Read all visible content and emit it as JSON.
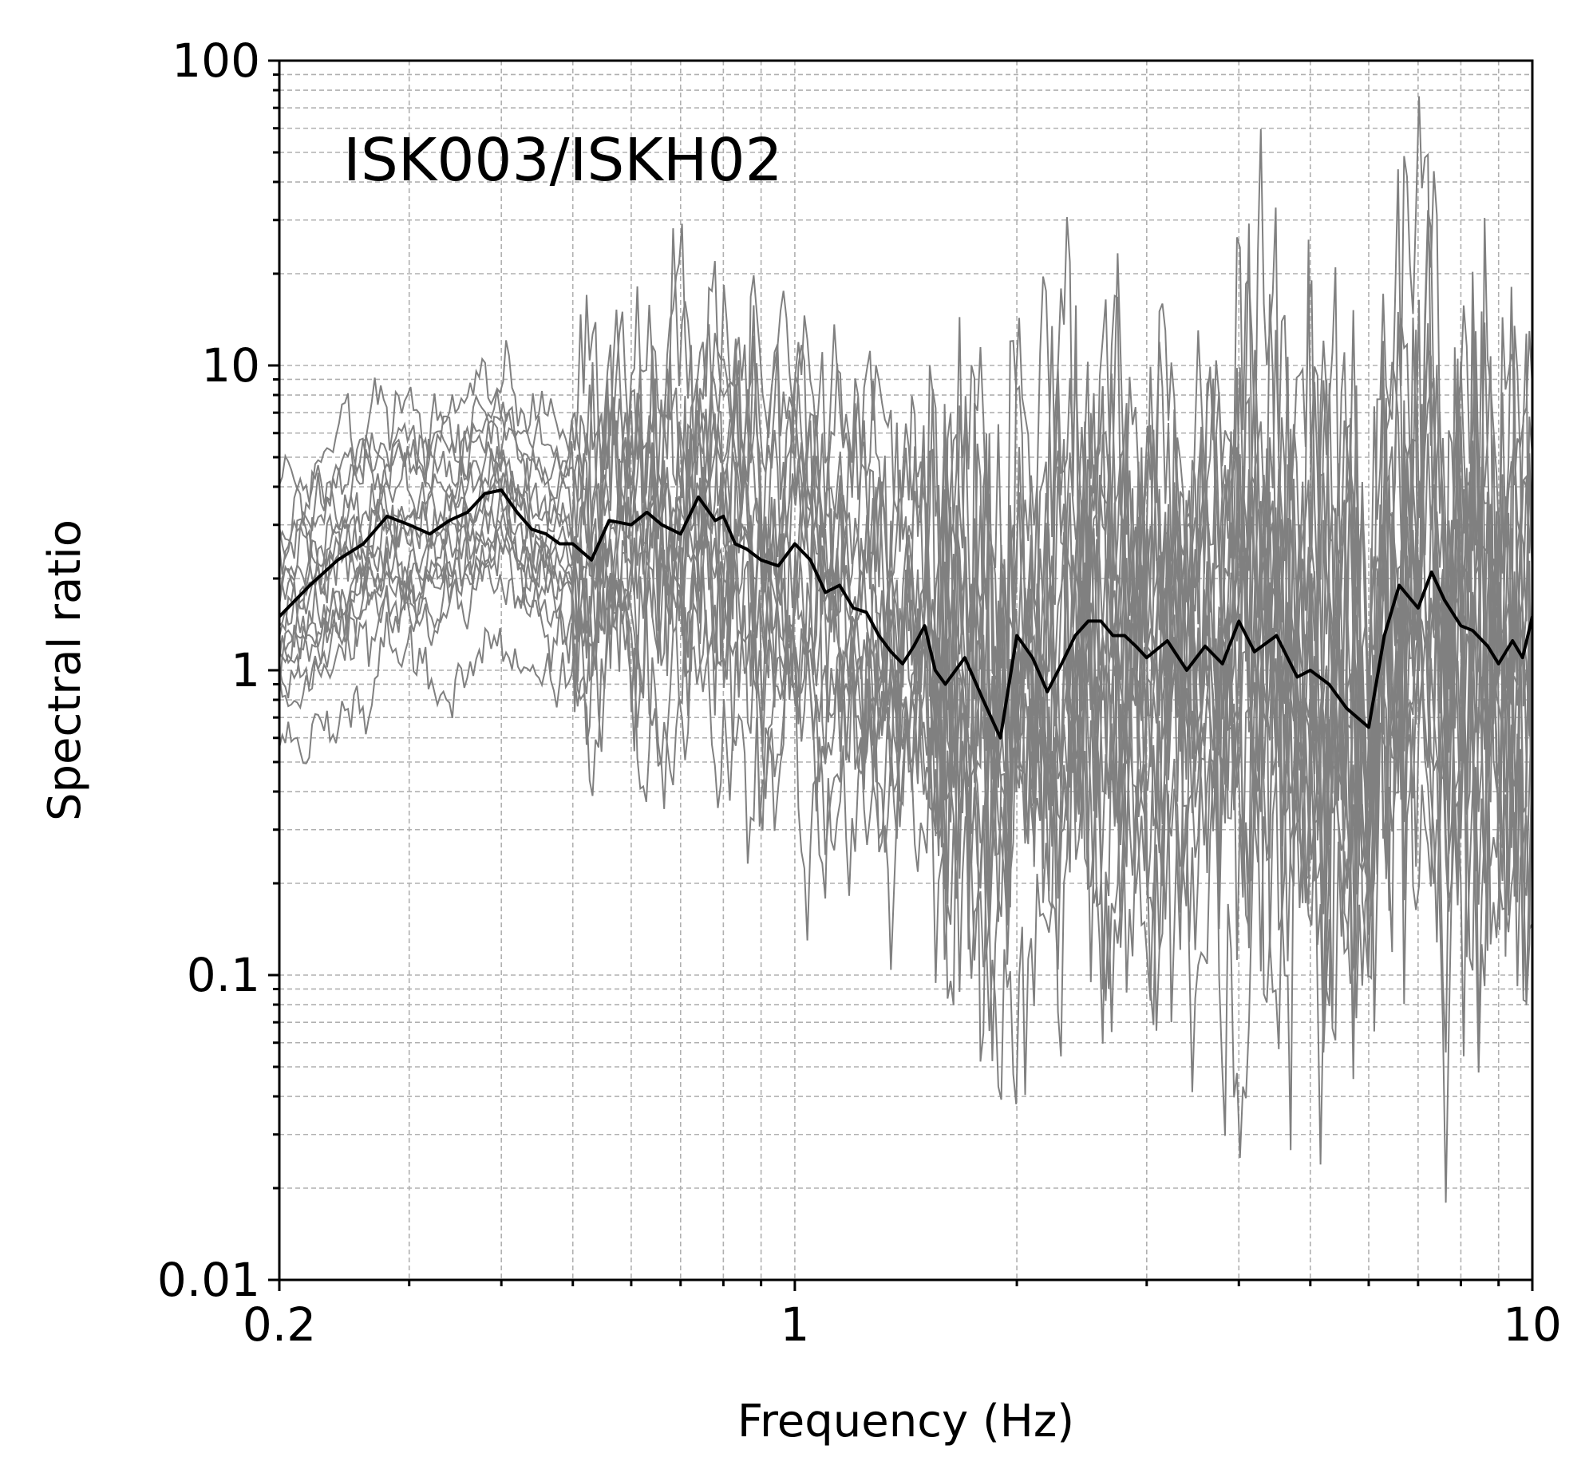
{
  "chart_data": {
    "type": "line",
    "annotation": "ISK003/ISKH02",
    "xlabel": "Frequency (Hz)",
    "ylabel": "Spectral ratio",
    "xscale": "log",
    "yscale": "log",
    "xlim": [
      0.2,
      10
    ],
    "ylim": [
      0.01,
      100
    ],
    "x_ticks": [
      0.2,
      1,
      10
    ],
    "x_tick_labels": [
      "0.2",
      "1",
      "10"
    ],
    "y_ticks": [
      0.01,
      0.1,
      1,
      10,
      100
    ],
    "y_tick_labels": [
      "0.01",
      "0.1",
      "1",
      "10",
      "100"
    ],
    "grid": "on (major and minor, dashed)",
    "colors": {
      "individual": "#808080",
      "mean": "#000000",
      "grid": "#b0b0b0"
    },
    "mean_series": {
      "x": [
        0.2,
        0.22,
        0.24,
        0.26,
        0.28,
        0.3,
        0.32,
        0.34,
        0.36,
        0.38,
        0.4,
        0.42,
        0.44,
        0.46,
        0.48,
        0.5,
        0.53,
        0.56,
        0.6,
        0.63,
        0.66,
        0.7,
        0.74,
        0.78,
        0.8,
        0.83,
        0.86,
        0.9,
        0.95,
        1.0,
        1.05,
        1.1,
        1.15,
        1.2,
        1.25,
        1.3,
        1.35,
        1.4,
        1.45,
        1.5,
        1.55,
        1.6,
        1.7,
        1.8,
        1.9,
        2.0,
        2.1,
        2.2,
        2.3,
        2.4,
        2.5,
        2.6,
        2.7,
        2.8,
        2.9,
        3.0,
        3.2,
        3.4,
        3.6,
        3.8,
        4.0,
        4.2,
        4.5,
        4.8,
        5.0,
        5.3,
        5.6,
        6.0,
        6.3,
        6.6,
        7.0,
        7.3,
        7.6,
        8.0,
        8.3,
        8.7,
        9.0,
        9.4,
        9.7,
        10.0
      ],
      "y": [
        1.5,
        1.9,
        2.3,
        2.6,
        3.2,
        3.0,
        2.8,
        3.1,
        3.3,
        3.8,
        3.9,
        3.3,
        2.9,
        2.8,
        2.6,
        2.6,
        2.3,
        3.1,
        3.0,
        3.3,
        3.0,
        2.8,
        3.7,
        3.1,
        3.2,
        2.6,
        2.5,
        2.3,
        2.2,
        2.6,
        2.3,
        1.8,
        1.9,
        1.6,
        1.55,
        1.3,
        1.15,
        1.05,
        1.2,
        1.4,
        1.0,
        0.9,
        1.1,
        0.8,
        0.6,
        1.3,
        1.1,
        0.85,
        1.05,
        1.3,
        1.45,
        1.45,
        1.3,
        1.3,
        1.2,
        1.1,
        1.25,
        1.0,
        1.2,
        1.05,
        1.45,
        1.15,
        1.3,
        0.95,
        1.0,
        0.9,
        0.75,
        0.65,
        1.3,
        1.9,
        1.6,
        2.1,
        1.7,
        1.4,
        1.35,
        1.2,
        1.05,
        1.25,
        1.1,
        1.5
      ]
    },
    "individual_series_count": 16
  }
}
